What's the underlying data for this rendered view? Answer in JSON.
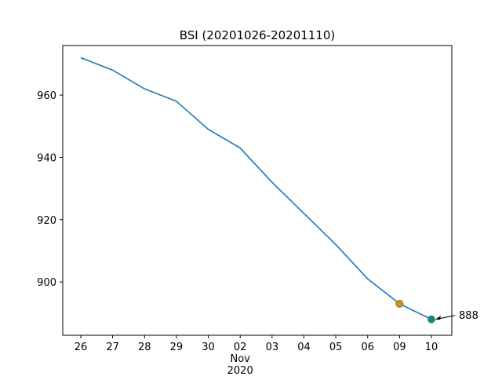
{
  "chart_data": {
    "type": "line",
    "title": "BSI (20201026-20201110)",
    "categories": [
      "26",
      "27",
      "28",
      "29",
      "30",
      "02\nNov\n2020",
      "03",
      "04",
      "05",
      "06",
      "09",
      "10"
    ],
    "series": [
      {
        "name": "BSI",
        "color": "#1f77b4",
        "values": [
          972,
          968,
          962,
          958,
          949,
          943,
          932,
          922,
          912,
          901,
          893,
          888
        ]
      }
    ],
    "highlights": [
      {
        "index": 10,
        "color": "#ff7f0e",
        "edge": "#2ca02c"
      },
      {
        "index": 11,
        "color": "#1f77b4",
        "edge": "#2ca02c"
      }
    ],
    "annotation": {
      "text": "888",
      "index": 11
    },
    "ylim": [
      882.9,
      975.9
    ],
    "yticks": [
      900,
      920,
      940,
      960
    ]
  }
}
